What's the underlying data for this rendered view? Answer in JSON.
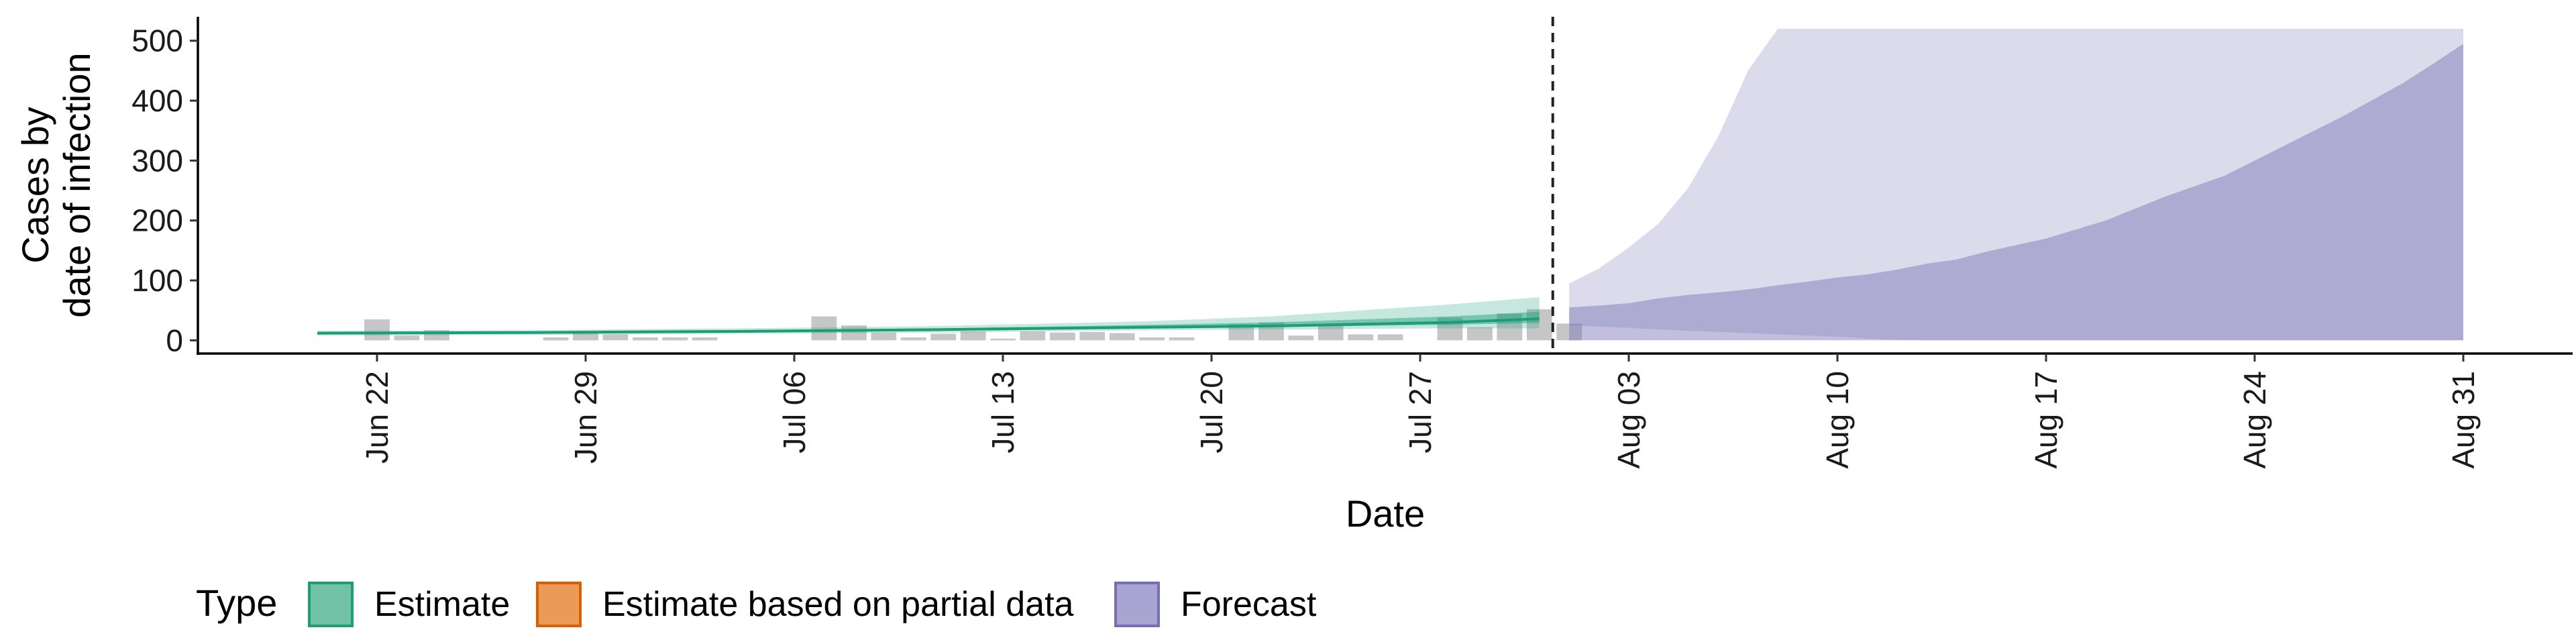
{
  "chart_data": {
    "type": "area",
    "xlabel": "Date",
    "ylabel_lines": [
      "Cases by",
      "date of infection"
    ],
    "ylim": [
      -22,
      540
    ],
    "y_ticks": [
      0,
      100,
      200,
      300,
      400,
      500
    ],
    "x_range": [
      "2020-06-14",
      "2020-09-03"
    ],
    "x_ticks": [
      {
        "date": "2020-06-22",
        "label": "Jun 22"
      },
      {
        "date": "2020-06-29",
        "label": "Jun 29"
      },
      {
        "date": "2020-07-06",
        "label": "Jul 06"
      },
      {
        "date": "2020-07-13",
        "label": "Jul 13"
      },
      {
        "date": "2020-07-20",
        "label": "Jul 20"
      },
      {
        "date": "2020-07-27",
        "label": "Jul 27"
      },
      {
        "date": "2020-08-03",
        "label": "Aug 03"
      },
      {
        "date": "2020-08-10",
        "label": "Aug 10"
      },
      {
        "date": "2020-08-17",
        "label": "Aug 17"
      },
      {
        "date": "2020-08-24",
        "label": "Aug 24"
      },
      {
        "date": "2020-08-31",
        "label": "Aug 31"
      }
    ],
    "forecast_start": "2020-08-01",
    "observed_cases": [
      {
        "date": "2020-06-22",
        "value": 35
      },
      {
        "date": "2020-06-23",
        "value": 8
      },
      {
        "date": "2020-06-24",
        "value": 17
      },
      {
        "date": "2020-06-28",
        "value": 5
      },
      {
        "date": "2020-06-29",
        "value": 15
      },
      {
        "date": "2020-06-30",
        "value": 10
      },
      {
        "date": "2020-07-01",
        "value": 5
      },
      {
        "date": "2020-07-02",
        "value": 5
      },
      {
        "date": "2020-07-03",
        "value": 5
      },
      {
        "date": "2020-07-07",
        "value": 40
      },
      {
        "date": "2020-07-08",
        "value": 25
      },
      {
        "date": "2020-07-09",
        "value": 13
      },
      {
        "date": "2020-07-10",
        "value": 5
      },
      {
        "date": "2020-07-11",
        "value": 11
      },
      {
        "date": "2020-07-12",
        "value": 15
      },
      {
        "date": "2020-07-13",
        "value": 3
      },
      {
        "date": "2020-07-14",
        "value": 15
      },
      {
        "date": "2020-07-15",
        "value": 13
      },
      {
        "date": "2020-07-16",
        "value": 14
      },
      {
        "date": "2020-07-17",
        "value": 12
      },
      {
        "date": "2020-07-18",
        "value": 5
      },
      {
        "date": "2020-07-19",
        "value": 5
      },
      {
        "date": "2020-07-21",
        "value": 27
      },
      {
        "date": "2020-07-22",
        "value": 30
      },
      {
        "date": "2020-07-23",
        "value": 8
      },
      {
        "date": "2020-07-24",
        "value": 25
      },
      {
        "date": "2020-07-25",
        "value": 10
      },
      {
        "date": "2020-07-26",
        "value": 10
      },
      {
        "date": "2020-07-28",
        "value": 38
      },
      {
        "date": "2020-07-29",
        "value": 22
      },
      {
        "date": "2020-07-30",
        "value": 45
      },
      {
        "date": "2020-07-31",
        "value": 52
      },
      {
        "date": "2020-08-01",
        "value": 28
      }
    ],
    "series": [
      {
        "name": "Estimate",
        "color": "#1b9e77",
        "dates": [
          "2020-06-20",
          "2020-06-27",
          "2020-07-04",
          "2020-07-11",
          "2020-07-18",
          "2020-07-22",
          "2020-07-25",
          "2020-07-28",
          "2020-07-30",
          "2020-07-31"
        ],
        "median": [
          12,
          13,
          15,
          18,
          22,
          24,
          27,
          30,
          34,
          36
        ],
        "inner_lower": [
          10,
          11,
          13,
          16,
          20,
          22,
          24,
          26,
          28,
          29
        ],
        "inner_upper": [
          14,
          15,
          17,
          20,
          26,
          30,
          35,
          40,
          45,
          48
        ],
        "outer_lower": [
          8,
          9,
          11,
          13,
          17,
          18,
          19,
          20,
          20,
          20
        ],
        "outer_upper": [
          16,
          17,
          20,
          24,
          32,
          40,
          50,
          60,
          68,
          72
        ]
      },
      {
        "name": "Estimate based on partial data",
        "color": "#d95f02"
      },
      {
        "name": "Forecast",
        "color": "#7570b3",
        "dates": [
          "2020-08-01",
          "2020-08-02",
          "2020-08-03",
          "2020-08-04",
          "2020-08-05",
          "2020-08-06",
          "2020-08-07",
          "2020-08-08",
          "2020-08-09",
          "2020-08-10",
          "2020-08-11",
          "2020-08-12",
          "2020-08-13",
          "2020-08-14",
          "2020-08-15",
          "2020-08-17",
          "2020-08-19",
          "2020-08-21",
          "2020-08-23",
          "2020-08-25",
          "2020-08-27",
          "2020-08-29",
          "2020-08-30",
          "2020-08-31"
        ],
        "inner_lower": [
          0,
          0,
          0,
          0,
          0,
          0,
          0,
          0,
          0,
          0,
          0,
          0,
          0,
          0,
          0,
          0,
          0,
          0,
          0,
          0,
          0,
          0,
          0,
          0
        ],
        "inner_upper": [
          55,
          58,
          62,
          70,
          76,
          80,
          85,
          92,
          98,
          105,
          110,
          118,
          128,
          135,
          148,
          170,
          200,
          240,
          275,
          325,
          375,
          430,
          462,
          495
        ],
        "outer_lower": [
          25,
          23,
          21,
          18,
          16,
          14,
          12,
          10,
          8,
          6,
          3,
          1,
          0,
          0,
          0,
          0,
          0,
          0,
          0,
          0,
          0,
          0,
          0,
          0
        ],
        "outer_upper": [
          95,
          120,
          155,
          195,
          255,
          340,
          450,
          520,
          520,
          520,
          520,
          520,
          520,
          520,
          520,
          520,
          520,
          520,
          520,
          520,
          520,
          520,
          520,
          520
        ]
      }
    ],
    "legend": {
      "title": "Type",
      "position": "bottom-left",
      "items": [
        {
          "label": "Estimate",
          "fill": "#72c2a8",
          "stroke": "#1b9e77"
        },
        {
          "label": "Estimate based on partial data",
          "fill": "#eb9a57",
          "stroke": "#d95f02"
        },
        {
          "label": "Forecast",
          "fill": "#a9a5d3",
          "stroke": "#7570b3"
        }
      ]
    },
    "grid": false
  }
}
